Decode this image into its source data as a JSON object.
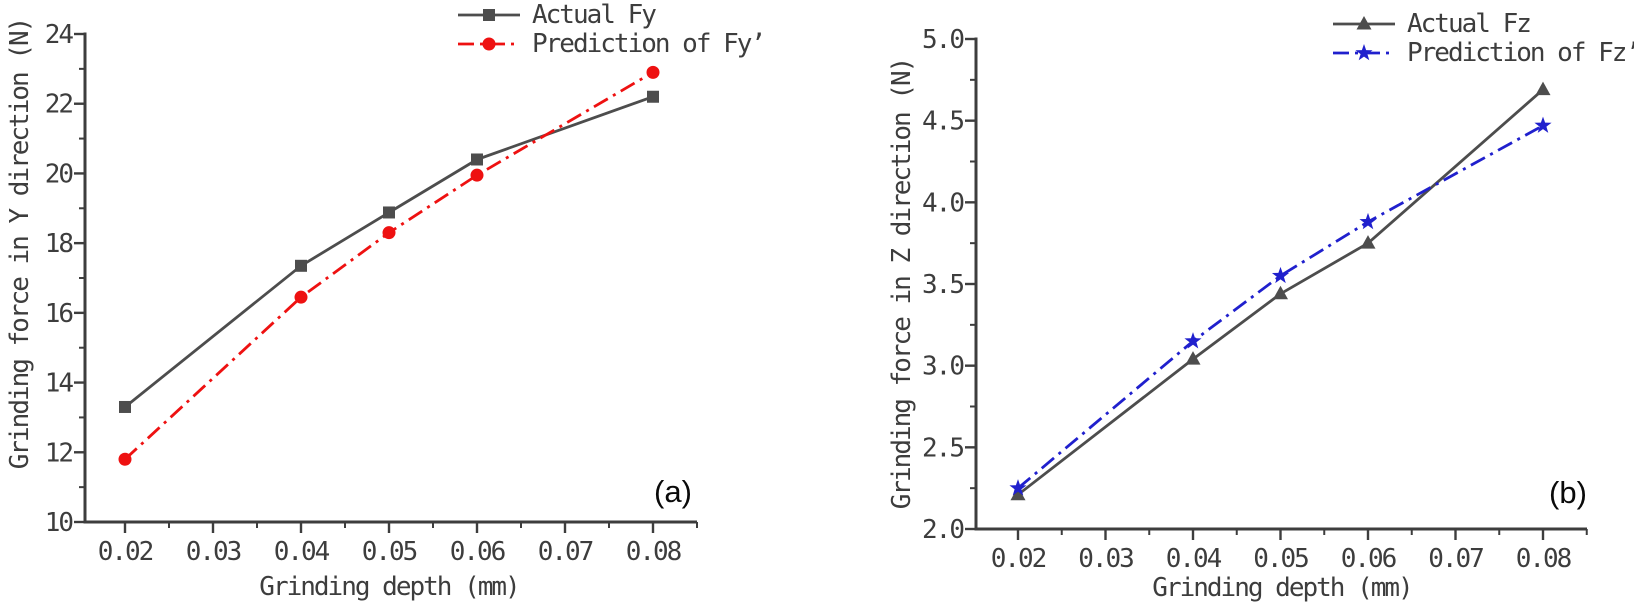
{
  "figure": {
    "background": "#ffffff",
    "axis_color": "#3d3d3d",
    "text_color": "#3d3d3d",
    "panel_label_color": "#0a0a0a"
  },
  "chart_data": [
    {
      "type": "line",
      "panel_label": "(a)",
      "title": "",
      "xlabel": "Grinding depth (mm)",
      "ylabel": "Grinding force in Y direction (N)",
      "xlim": [
        0.015,
        0.085
      ],
      "ylim": [
        10,
        24
      ],
      "grid": false,
      "legend_position": "top-right-above-plot",
      "x_ticks": {
        "values": [
          0.02,
          0.03,
          0.04,
          0.05,
          0.06,
          0.07,
          0.08
        ],
        "labels": [
          "0.02",
          "0.03",
          "0.04",
          "0.05",
          "0.06",
          "0.07",
          "0.08"
        ]
      },
      "y_ticks": {
        "values": [
          10,
          12,
          14,
          16,
          18,
          20,
          22,
          24
        ],
        "labels": [
          "10",
          "12",
          "14",
          "16",
          "18",
          "20",
          "22",
          "24"
        ]
      },
      "x_minor_step": 0.005,
      "y_minor_step": 1,
      "x": [
        0.02,
        0.04,
        0.05,
        0.06,
        0.08
      ],
      "series": [
        {
          "name": "Actual Fy",
          "color": "#4d4d4d",
          "line_style": "solid",
          "marker": "square",
          "values": [
            13.3,
            17.35,
            18.88,
            20.4,
            22.2
          ]
        },
        {
          "name": "Prediction of Fy’",
          "color": "#ee1111",
          "line_style": "dash-dot",
          "marker": "circle",
          "values": [
            11.8,
            16.45,
            18.3,
            19.95,
            22.9
          ]
        }
      ]
    },
    {
      "type": "line",
      "panel_label": "(b)",
      "title": "",
      "xlabel": "Grinding depth (mm)",
      "ylabel": "Grinding force in Z direction (N)",
      "xlim": [
        0.015,
        0.085
      ],
      "ylim": [
        2.0,
        5.0
      ],
      "grid": false,
      "legend_position": "top-right-above-plot",
      "x_ticks": {
        "values": [
          0.02,
          0.03,
          0.04,
          0.05,
          0.06,
          0.07,
          0.08
        ],
        "labels": [
          "0.02",
          "0.03",
          "0.04",
          "0.05",
          "0.06",
          "0.07",
          "0.08"
        ]
      },
      "y_ticks": {
        "values": [
          2.0,
          2.5,
          3.0,
          3.5,
          4.0,
          4.5,
          5.0
        ],
        "labels": [
          "2.0",
          "2.5",
          "3.0",
          "3.5",
          "4.0",
          "4.5",
          "5.0"
        ]
      },
      "x_minor_step": 0.005,
      "y_minor_step": 0.25,
      "x": [
        0.02,
        0.04,
        0.05,
        0.06,
        0.08
      ],
      "series": [
        {
          "name": "Actual Fz",
          "color": "#4d4d4d",
          "line_style": "solid",
          "marker": "triangle-up",
          "values": [
            2.21,
            3.04,
            3.44,
            3.75,
            4.69
          ]
        },
        {
          "name": "Prediction of Fz’",
          "color": "#2020cd",
          "line_style": "dash-dot",
          "marker": "star",
          "values": [
            2.25,
            3.15,
            3.55,
            3.88,
            4.47
          ]
        }
      ]
    }
  ]
}
